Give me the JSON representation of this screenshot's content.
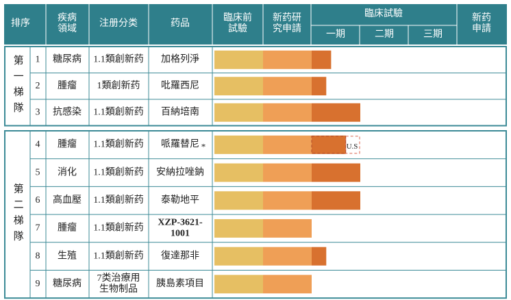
{
  "header": {
    "rank": "排序",
    "area": [
      "疾病",
      "領域"
    ],
    "class": "注册分类",
    "drug": "药品",
    "preclinical": [
      "臨床前",
      "試驗"
    ],
    "ind": [
      "新药研",
      "究申請"
    ],
    "trial": {
      "title": "臨床試驗",
      "phases": [
        "一期",
        "二期",
        "三期"
      ]
    },
    "nda": [
      "新药",
      "申請"
    ]
  },
  "colors": [
    "#e6bf63",
    "#ef9f56",
    "#d8712f"
  ],
  "tiers": [
    {
      "label": "第一梯隊",
      "rows": [
        {
          "no": 1,
          "area": "糖尿病",
          "class": "1.1類創新药",
          "drug": "加格列淨",
          "progress": 2.4
        },
        {
          "no": 2,
          "area": "腫瘤",
          "class": "1類創新药",
          "drug": "吡羅西尼",
          "progress": 2.3
        },
        {
          "no": 3,
          "area": "抗感染",
          "class": "1.1類創新药",
          "drug": "百納培南",
          "progress": 3
        }
      ]
    },
    {
      "label": "第二梯隊",
      "rows": [
        {
          "no": 4,
          "area": "腫瘤",
          "class": "1.1類創新药",
          "drug": "哌羅替尼",
          "mark": "*",
          "progress": 2.7,
          "planned": 3,
          "planned_label": "U.S"
        },
        {
          "no": 5,
          "area": "消化",
          "class": "1.1類創新药",
          "drug": "安納拉唑鈉",
          "progress": 3
        },
        {
          "no": 6,
          "area": "高血壓",
          "class": "1.1類創新药",
          "drug": "泰勒地平",
          "progress": 3
        },
        {
          "no": 7,
          "area": "腫瘤",
          "class": "1.1類創新药",
          "drug": [
            "XZP-3621-",
            "1001"
          ],
          "progress": 2
        },
        {
          "no": 8,
          "area": "生殖",
          "class": "1.1類創新药",
          "drug": "復達那非",
          "progress": 2.3
        },
        {
          "no": 9,
          "area": "糖尿病",
          "class": [
            "7类治療用",
            "生物制品"
          ],
          "drug": "胰島素項目",
          "progress": 2
        }
      ]
    }
  ]
}
